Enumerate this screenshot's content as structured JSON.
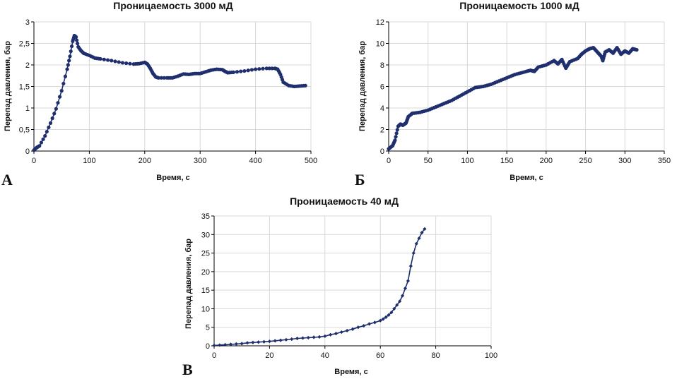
{
  "chart_data": [
    {
      "type": "line",
      "panel": "А",
      "title": "Проницаемость 3000 мД",
      "xlabel": "Время, с",
      "ylabel": "Перепад давления, бар",
      "xlim": [
        0,
        500
      ],
      "ylim": [
        0,
        3
      ],
      "xticks": [
        "0",
        "100",
        "200",
        "300",
        "400",
        "500"
      ],
      "yticks": [
        "0",
        "0,5",
        "1",
        "1,5",
        "2",
        "2,5",
        "3"
      ],
      "grid": true,
      "series": [
        {
          "color": "#1f2f6e",
          "marker": "circle",
          "x": [
            0,
            5,
            10,
            20,
            30,
            40,
            50,
            60,
            65,
            70,
            73,
            76,
            80,
            85,
            90,
            100,
            110,
            120,
            140,
            160,
            180,
            190,
            200,
            205,
            210,
            215,
            220,
            225,
            240,
            250,
            260,
            270,
            280,
            290,
            300,
            310,
            320,
            330,
            340,
            345,
            350,
            360,
            380,
            400,
            420,
            435,
            440,
            445,
            450,
            460,
            470,
            480,
            490
          ],
          "y": [
            0.02,
            0.08,
            0.12,
            0.35,
            0.65,
            0.98,
            1.4,
            1.9,
            2.2,
            2.55,
            2.68,
            2.65,
            2.42,
            2.33,
            2.27,
            2.22,
            2.16,
            2.14,
            2.1,
            2.05,
            2.02,
            2.03,
            2.06,
            2.02,
            1.92,
            1.8,
            1.72,
            1.7,
            1.7,
            1.7,
            1.74,
            1.79,
            1.78,
            1.8,
            1.8,
            1.84,
            1.88,
            1.9,
            1.89,
            1.85,
            1.82,
            1.83,
            1.86,
            1.9,
            1.92,
            1.92,
            1.9,
            1.78,
            1.6,
            1.52,
            1.5,
            1.51,
            1.52
          ]
        }
      ]
    },
    {
      "type": "line",
      "panel": "Б",
      "title": "Проницаемость 1000 мД",
      "xlabel": "Время, с",
      "ylabel": "Перепад давления, бар",
      "xlim": [
        0,
        350
      ],
      "ylim": [
        0,
        12
      ],
      "xticks": [
        "0",
        "50",
        "100",
        "150",
        "200",
        "250",
        "300",
        "350"
      ],
      "yticks": [
        "0",
        "2",
        "4",
        "6",
        "8",
        "10",
        "12"
      ],
      "grid": true,
      "series": [
        {
          "color": "#1f2f6e",
          "marker": "circle",
          "x": [
            0,
            5,
            8,
            12,
            15,
            18,
            22,
            25,
            30,
            40,
            50,
            60,
            70,
            80,
            90,
            100,
            110,
            120,
            130,
            140,
            150,
            160,
            170,
            180,
            185,
            190,
            200,
            210,
            215,
            220,
            225,
            230,
            240,
            245,
            250,
            255,
            260,
            265,
            270,
            272,
            275,
            280,
            285,
            290,
            295,
            300,
            305,
            310,
            315
          ],
          "y": [
            0.2,
            0.5,
            1.0,
            2.3,
            2.5,
            2.4,
            2.6,
            3.2,
            3.5,
            3.6,
            3.8,
            4.1,
            4.4,
            4.7,
            5.1,
            5.5,
            5.9,
            6.0,
            6.2,
            6.5,
            6.8,
            7.1,
            7.3,
            7.5,
            7.4,
            7.8,
            8.0,
            8.4,
            8.1,
            8.5,
            7.7,
            8.3,
            8.6,
            9.0,
            9.3,
            9.5,
            9.6,
            9.2,
            8.8,
            8.4,
            9.2,
            9.4,
            9.1,
            9.6,
            9.0,
            9.3,
            9.1,
            9.5,
            9.4
          ]
        }
      ]
    },
    {
      "type": "line",
      "panel": "В",
      "title": "Проницаемость 40 мД",
      "xlabel": "Время, с",
      "ylabel": "Перепад давления, бар",
      "xlim": [
        0,
        100
      ],
      "ylim": [
        0,
        35
      ],
      "xticks": [
        "0",
        "20",
        "40",
        "60",
        "80",
        "100"
      ],
      "yticks": [
        "0",
        "5",
        "10",
        "15",
        "20",
        "25",
        "30",
        "35"
      ],
      "grid": true,
      "series": [
        {
          "color": "#1f2f6e",
          "marker": "diamond",
          "x": [
            0,
            2,
            4,
            6,
            8,
            10,
            12,
            14,
            16,
            18,
            20,
            22,
            24,
            26,
            28,
            30,
            32,
            34,
            36,
            38,
            40,
            42,
            44,
            46,
            48,
            50,
            52,
            54,
            56,
            58,
            60,
            61,
            62,
            63,
            64,
            65,
            66,
            67,
            68,
            69,
            70,
            71,
            72,
            73,
            74,
            75,
            76
          ],
          "y": [
            0.1,
            0.2,
            0.3,
            0.4,
            0.5,
            0.6,
            0.8,
            0.9,
            1.0,
            1.1,
            1.2,
            1.35,
            1.5,
            1.65,
            1.8,
            2.0,
            2.1,
            2.2,
            2.3,
            2.4,
            2.6,
            3.0,
            3.3,
            3.7,
            4.1,
            4.5,
            5.0,
            5.4,
            5.9,
            6.3,
            6.8,
            7.2,
            7.7,
            8.3,
            9.0,
            10.0,
            11.0,
            12.0,
            13.5,
            15.5,
            17.5,
            21.5,
            25.0,
            27.5,
            29.0,
            30.5,
            31.5
          ]
        }
      ]
    }
  ]
}
